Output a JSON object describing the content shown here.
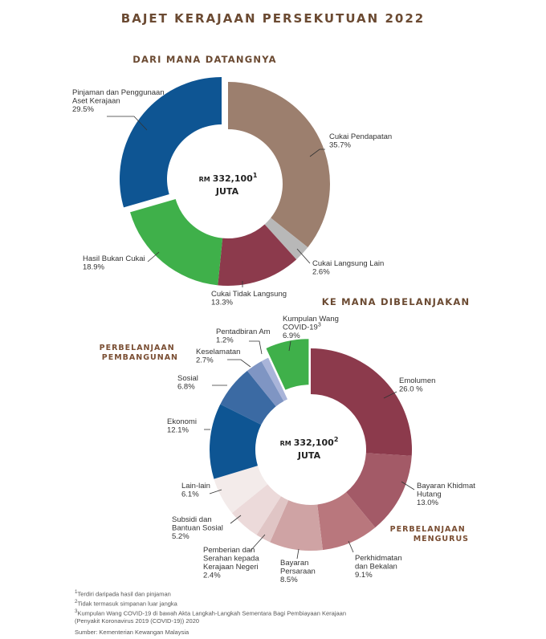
{
  "title": "BAJET KERAJAAN PERSEKUTUAN 2022",
  "chart_data": [
    {
      "type": "pie",
      "title": "DARI MANA DATANGNYA",
      "center": {
        "prefix": "RM",
        "value": "332,100",
        "sup": "1",
        "unit": "JUTA"
      },
      "categories": [
        "Cukai Pendapatan",
        "Cukai Langsung Lain",
        "Cukai Tidak Langsung",
        "Hasil Bukan Cukai",
        "Pinjaman dan Penggunaan Aset Kerajaan"
      ],
      "label_lines": [
        [
          "Cukai Pendapatan"
        ],
        [
          "Cukai Langsung Lain"
        ],
        [
          "Cukai Tidak Langsung"
        ],
        [
          "Hasil Bukan Cukai"
        ],
        [
          "Pinjaman dan Penggunaan",
          "Aset Kerajaan"
        ]
      ],
      "value_labels": [
        "35.7%",
        "2.6%",
        "13.3%",
        "18.9%",
        "29.5%"
      ],
      "values": [
        35.7,
        2.6,
        13.3,
        18.9,
        29.5
      ],
      "colors": [
        "#9c7f6e",
        "#b8b8b8",
        "#8c3a4c",
        "#3fb04a",
        "#0e5593"
      ]
    },
    {
      "type": "pie",
      "title": "KE MANA DIBELANJAKAN",
      "center": {
        "prefix": "RM",
        "value": "332,100",
        "sup": "2",
        "unit": "JUTA"
      },
      "groups": [
        "PERBELANJAAN PEMBANGUNAN",
        "PERBELANJAAN MENGURUS"
      ],
      "group_lines": [
        [
          "PERBELANJAAN",
          "PEMBANGUNAN"
        ],
        [
          "PERBELANJAAN",
          "MENGURUS"
        ]
      ],
      "categories": [
        "Emolumen",
        "Bayaran Khidmat Hutang",
        "Perkhidmatan dan Bekalan",
        "Bayaran Persaraan",
        "Pemberian dan Serahan kepada Kerajaan Negeri",
        "Subsidi dan Bantuan Sosial",
        "Lain-lain",
        "Ekonomi",
        "Sosial",
        "Keselamatan",
        "Pentadbiran Am",
        "Kumpulan Wang COVID-19"
      ],
      "label_lines": [
        [
          "Emolumen"
        ],
        [
          "Bayaran Khidmat",
          "Hutang"
        ],
        [
          "Perkhidmatan",
          "dan Bekalan"
        ],
        [
          "Bayaran",
          "Persaraan"
        ],
        [
          "Pemberian dan",
          "Serahan kepada",
          "Kerajaan Negeri"
        ],
        [
          "Subsidi dan",
          "Bantuan Sosial"
        ],
        [
          "Lain-lain"
        ],
        [
          "Ekonomi"
        ],
        [
          "Sosial"
        ],
        [
          "Keselamatan"
        ],
        [
          "Pentadbiran Am"
        ],
        [
          "Kumpulan Wang",
          "COVID-19"
        ]
      ],
      "value_labels": [
        "26.0 %",
        "13.0%",
        "9.1%",
        "8.5%",
        "2.4%",
        "5.2%",
        "6.1%",
        "12.1%",
        "6.8%",
        "2.7%",
        "1.2%",
        "6.9%"
      ],
      "values": [
        26.0,
        13.0,
        9.1,
        8.5,
        2.4,
        5.2,
        6.1,
        12.1,
        6.8,
        2.7,
        1.2,
        6.9
      ],
      "colors": [
        "#8c3a4c",
        "#a35a67",
        "#b9777d",
        "#cfa3a4",
        "#e0c5c5",
        "#ecdada",
        "#f3ebea",
        "#0e5593",
        "#3b6aa3",
        "#7f95c3",
        "#a9b4d9",
        "#3fb04a"
      ],
      "superscripts": {
        "Kumpulan Wang COVID-19": "3"
      }
    }
  ],
  "footnotes": [
    {
      "sup": "1",
      "text": "Terdiri daripada hasil dan pinjaman"
    },
    {
      "sup": "2",
      "text": "Tidak termasuk simpanan luar jangka"
    },
    {
      "sup": "3",
      "text": "Kumpulan Wang COVID-19 di bawah Akta Langkah-Langkah Sementara Bagi Pembiayaan Kerajaan"
    },
    {
      "sup": "",
      "text": "(Penyakit Koronavirus 2019 (COVID-19)) 2020"
    }
  ],
  "source": "Sumber: Kementerian Kewangan Malaysia"
}
